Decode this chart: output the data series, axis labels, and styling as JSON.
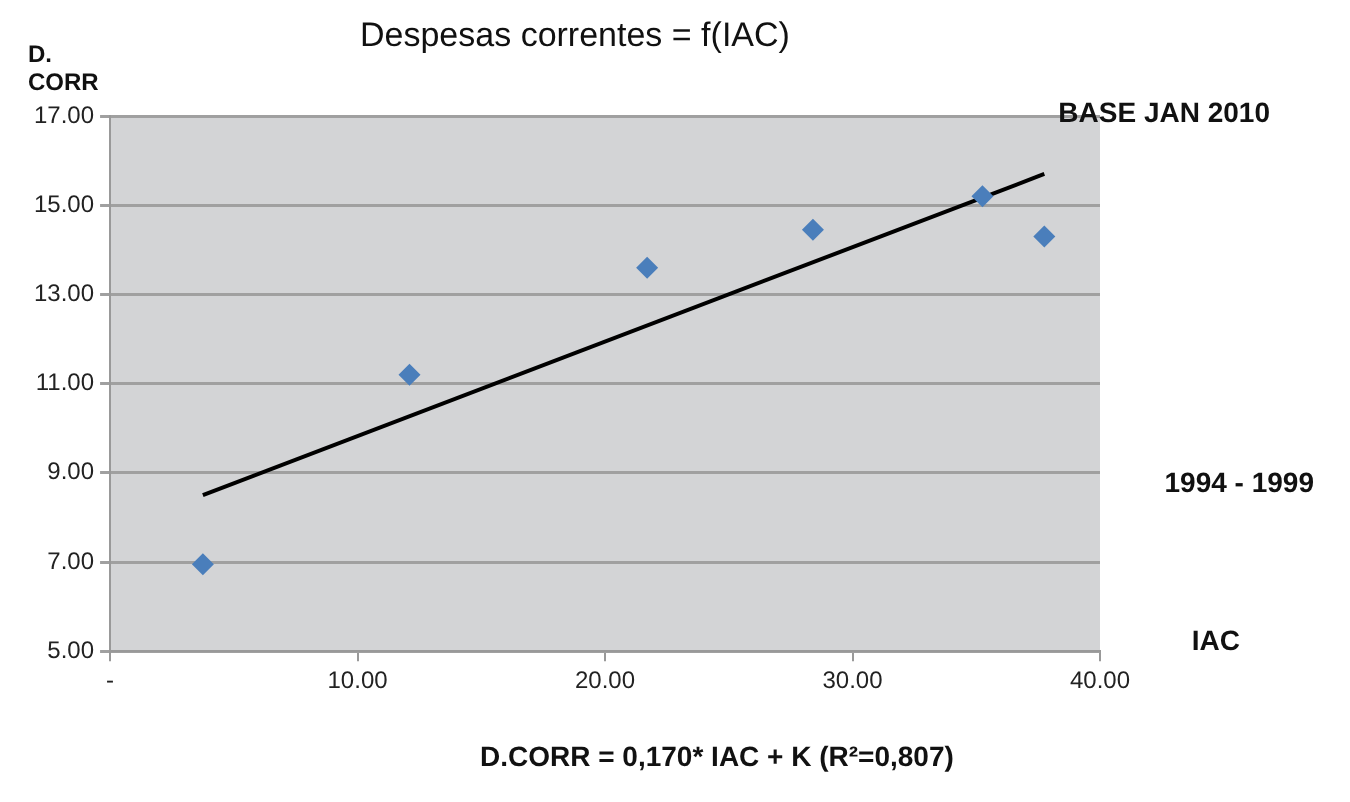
{
  "chart_data": {
    "type": "scatter",
    "title": "Despesas correntes = f(IAC)",
    "ylabel": "D. CORR",
    "xlabel": "IAC",
    "annotations": [
      "BASE JAN 2010",
      "1994 - 1999",
      "D.CORR = 0,170* IAC + K  (R²=0,807)"
    ],
    "xlim": [
      0,
      40
    ],
    "xticks": [
      {
        "value": 0,
        "label": "-"
      },
      {
        "value": 10,
        "label": "10.00"
      },
      {
        "value": 20,
        "label": "20.00"
      },
      {
        "value": 30,
        "label": "30.00"
      },
      {
        "value": 40,
        "label": "40.00"
      }
    ],
    "ylim": [
      5,
      17
    ],
    "yticks": [
      {
        "value": 5,
        "label": "5.00"
      },
      {
        "value": 7,
        "label": "7.00"
      },
      {
        "value": 9,
        "label": "9.00"
      },
      {
        "value": 11,
        "label": "11.00"
      },
      {
        "value": 13,
        "label": "13.00"
      },
      {
        "value": 15,
        "label": "15.00"
      },
      {
        "value": 17,
        "label": "17.00"
      }
    ],
    "grid": "y",
    "legend": false,
    "marker": "diamond",
    "series": [
      {
        "type": "scatter",
        "color": "#4a7ebb",
        "x": [
          3.75,
          12.1,
          21.7,
          28.4,
          35.25,
          37.75
        ],
        "values": [
          6.95,
          11.2,
          13.6,
          14.45,
          15.2,
          14.3
        ]
      },
      {
        "type": "line",
        "color": "#000000",
        "marker": "none",
        "line_style": "solid",
        "x": [
          3.75,
          37.75
        ],
        "values": [
          8.5,
          15.7
        ]
      }
    ]
  }
}
